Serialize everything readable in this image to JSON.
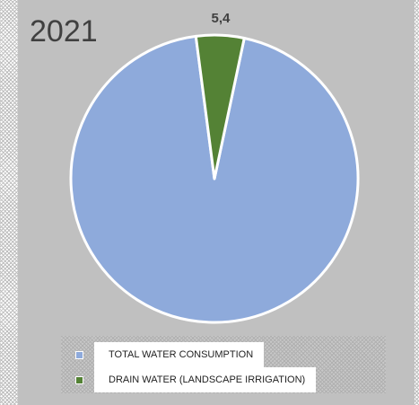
{
  "chart_data": {
    "type": "pie",
    "title": "2021",
    "series": [
      {
        "name": "TOTAL WATER CONSUMPTION",
        "value": 94.6,
        "color": "#8eaadb",
        "label": ""
      },
      {
        "name": "DRAIN WATER (LANDSCAPE IRRIGATION)",
        "value": 5.4,
        "color": "#548235",
        "label": "5,4"
      }
    ],
    "legend_position": "bottom",
    "start_angle_deg": 12
  }
}
